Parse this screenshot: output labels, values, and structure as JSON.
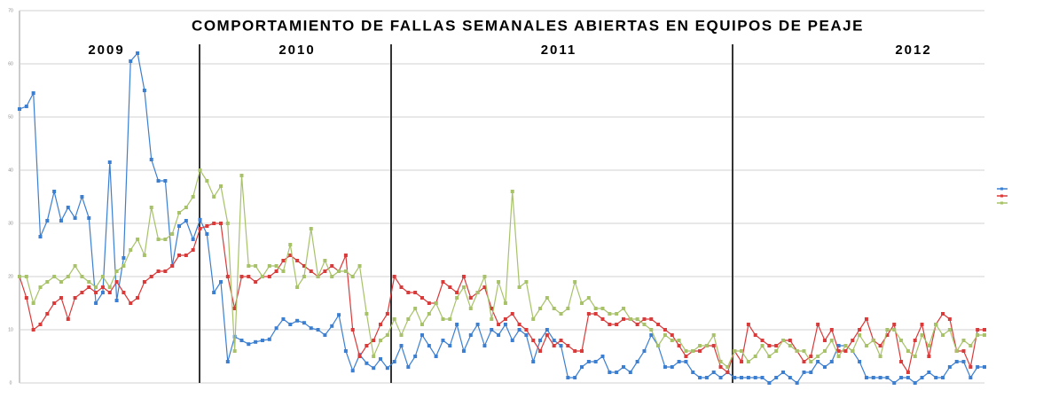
{
  "chart_data": {
    "type": "line",
    "title": "COMPORTAMIENTO DE FALLAS SEMANALES ABIERTAS EN EQUIPOS DE PEAJE",
    "annotations": [
      "2009",
      "2010",
      "2011",
      "2012"
    ],
    "ylim": [
      0,
      70
    ],
    "yticks": [
      0,
      10,
      20,
      30,
      40,
      50,
      60,
      70
    ],
    "grid": true,
    "series": [
      {
        "color": "#3c7fd1",
        "values": [
          51.5,
          52,
          54.5,
          27.5,
          30.5,
          36,
          30.5,
          33,
          31,
          35,
          31,
          15,
          17,
          41.5,
          15.5,
          23.5,
          60.5,
          62,
          55,
          42,
          38,
          38,
          22,
          29.5,
          30.5,
          27,
          30.7,
          28,
          17,
          19,
          4,
          8.7,
          8,
          7.3,
          7.7,
          8,
          8.2,
          10.3,
          12,
          11,
          11.7,
          11.3,
          10.3,
          10,
          9,
          10.7,
          12.8,
          6,
          2.3,
          5.3,
          3.7,
          2.8,
          4.5,
          2.8,
          4,
          7,
          3,
          5,
          9,
          7,
          5,
          8,
          7,
          11,
          6,
          9,
          11,
          7,
          10,
          9,
          11,
          8,
          10,
          9,
          4,
          8,
          10,
          8,
          7,
          1,
          1,
          3,
          4,
          4,
          5,
          2,
          2,
          3,
          2,
          4,
          6,
          9,
          7,
          3,
          3,
          4,
          4,
          2,
          1,
          1,
          2,
          1,
          2,
          1,
          1,
          1,
          1,
          1,
          0,
          1,
          2,
          1,
          0,
          2,
          2,
          4,
          3,
          4,
          7,
          7,
          6,
          4,
          1,
          1,
          1,
          1,
          0,
          1,
          1,
          0,
          1,
          2,
          1,
          1,
          3,
          4,
          4,
          1,
          3,
          3
        ]
      },
      {
        "color": "#d93a3a",
        "values": [
          20,
          16,
          10,
          11,
          13,
          15,
          16,
          12,
          16,
          17,
          18,
          17,
          18,
          17,
          19,
          17,
          15,
          16,
          19,
          20,
          21,
          21,
          22,
          24,
          24,
          25,
          29,
          29.5,
          30,
          30,
          20,
          14,
          20,
          20,
          19,
          20,
          20,
          21,
          23,
          24,
          23,
          22,
          21,
          20,
          21,
          22,
          21,
          24,
          10,
          5,
          7,
          8,
          11,
          13,
          20,
          18,
          17,
          17,
          16,
          15,
          15,
          19,
          18,
          17,
          20,
          16,
          17,
          18,
          14,
          11,
          12,
          13,
          11,
          10,
          8,
          6,
          9,
          7,
          8,
          7,
          6,
          6,
          13,
          13,
          12,
          11,
          11,
          12,
          12,
          11,
          12,
          12,
          11,
          10,
          9,
          7,
          5,
          6,
          6,
          7,
          7,
          3,
          2,
          6,
          4,
          11,
          9,
          8,
          7,
          7,
          8,
          8,
          6,
          4,
          5,
          11,
          8,
          10,
          6,
          6,
          8,
          10,
          12,
          8,
          7,
          9,
          11,
          4,
          2,
          8,
          11,
          5,
          11,
          13,
          12,
          6,
          6,
          3,
          10,
          10
        ]
      },
      {
        "color": "#a8c26a",
        "values": [
          20,
          20,
          15,
          18,
          19,
          20,
          19,
          20,
          22,
          20,
          19,
          18,
          20,
          18,
          21,
          22,
          25,
          27,
          24,
          33,
          27,
          27,
          28,
          32,
          33,
          35,
          40,
          38,
          35,
          37,
          30,
          6,
          39,
          22,
          22,
          20,
          22,
          22,
          21,
          26,
          18,
          20,
          29,
          20,
          23,
          20,
          21,
          21,
          20,
          22,
          13,
          5,
          8,
          9,
          12,
          9,
          12,
          14,
          11,
          13,
          15,
          12,
          12,
          16,
          18,
          14,
          17,
          20,
          12,
          19,
          15,
          36,
          18,
          19,
          12,
          14,
          16,
          14,
          13,
          14,
          19,
          15,
          16,
          14,
          14,
          13,
          13,
          14,
          12,
          12,
          11,
          10,
          7,
          9,
          8,
          8,
          6,
          6,
          7,
          7,
          9,
          4,
          3,
          6,
          6,
          4,
          5,
          7,
          5,
          6,
          8,
          7,
          6,
          6,
          4,
          5,
          6,
          8,
          5,
          7,
          6,
          9,
          7,
          8,
          5,
          10,
          10,
          8,
          6,
          5,
          9,
          7,
          11,
          9,
          10,
          6,
          8,
          7,
          9,
          9
        ]
      }
    ]
  }
}
